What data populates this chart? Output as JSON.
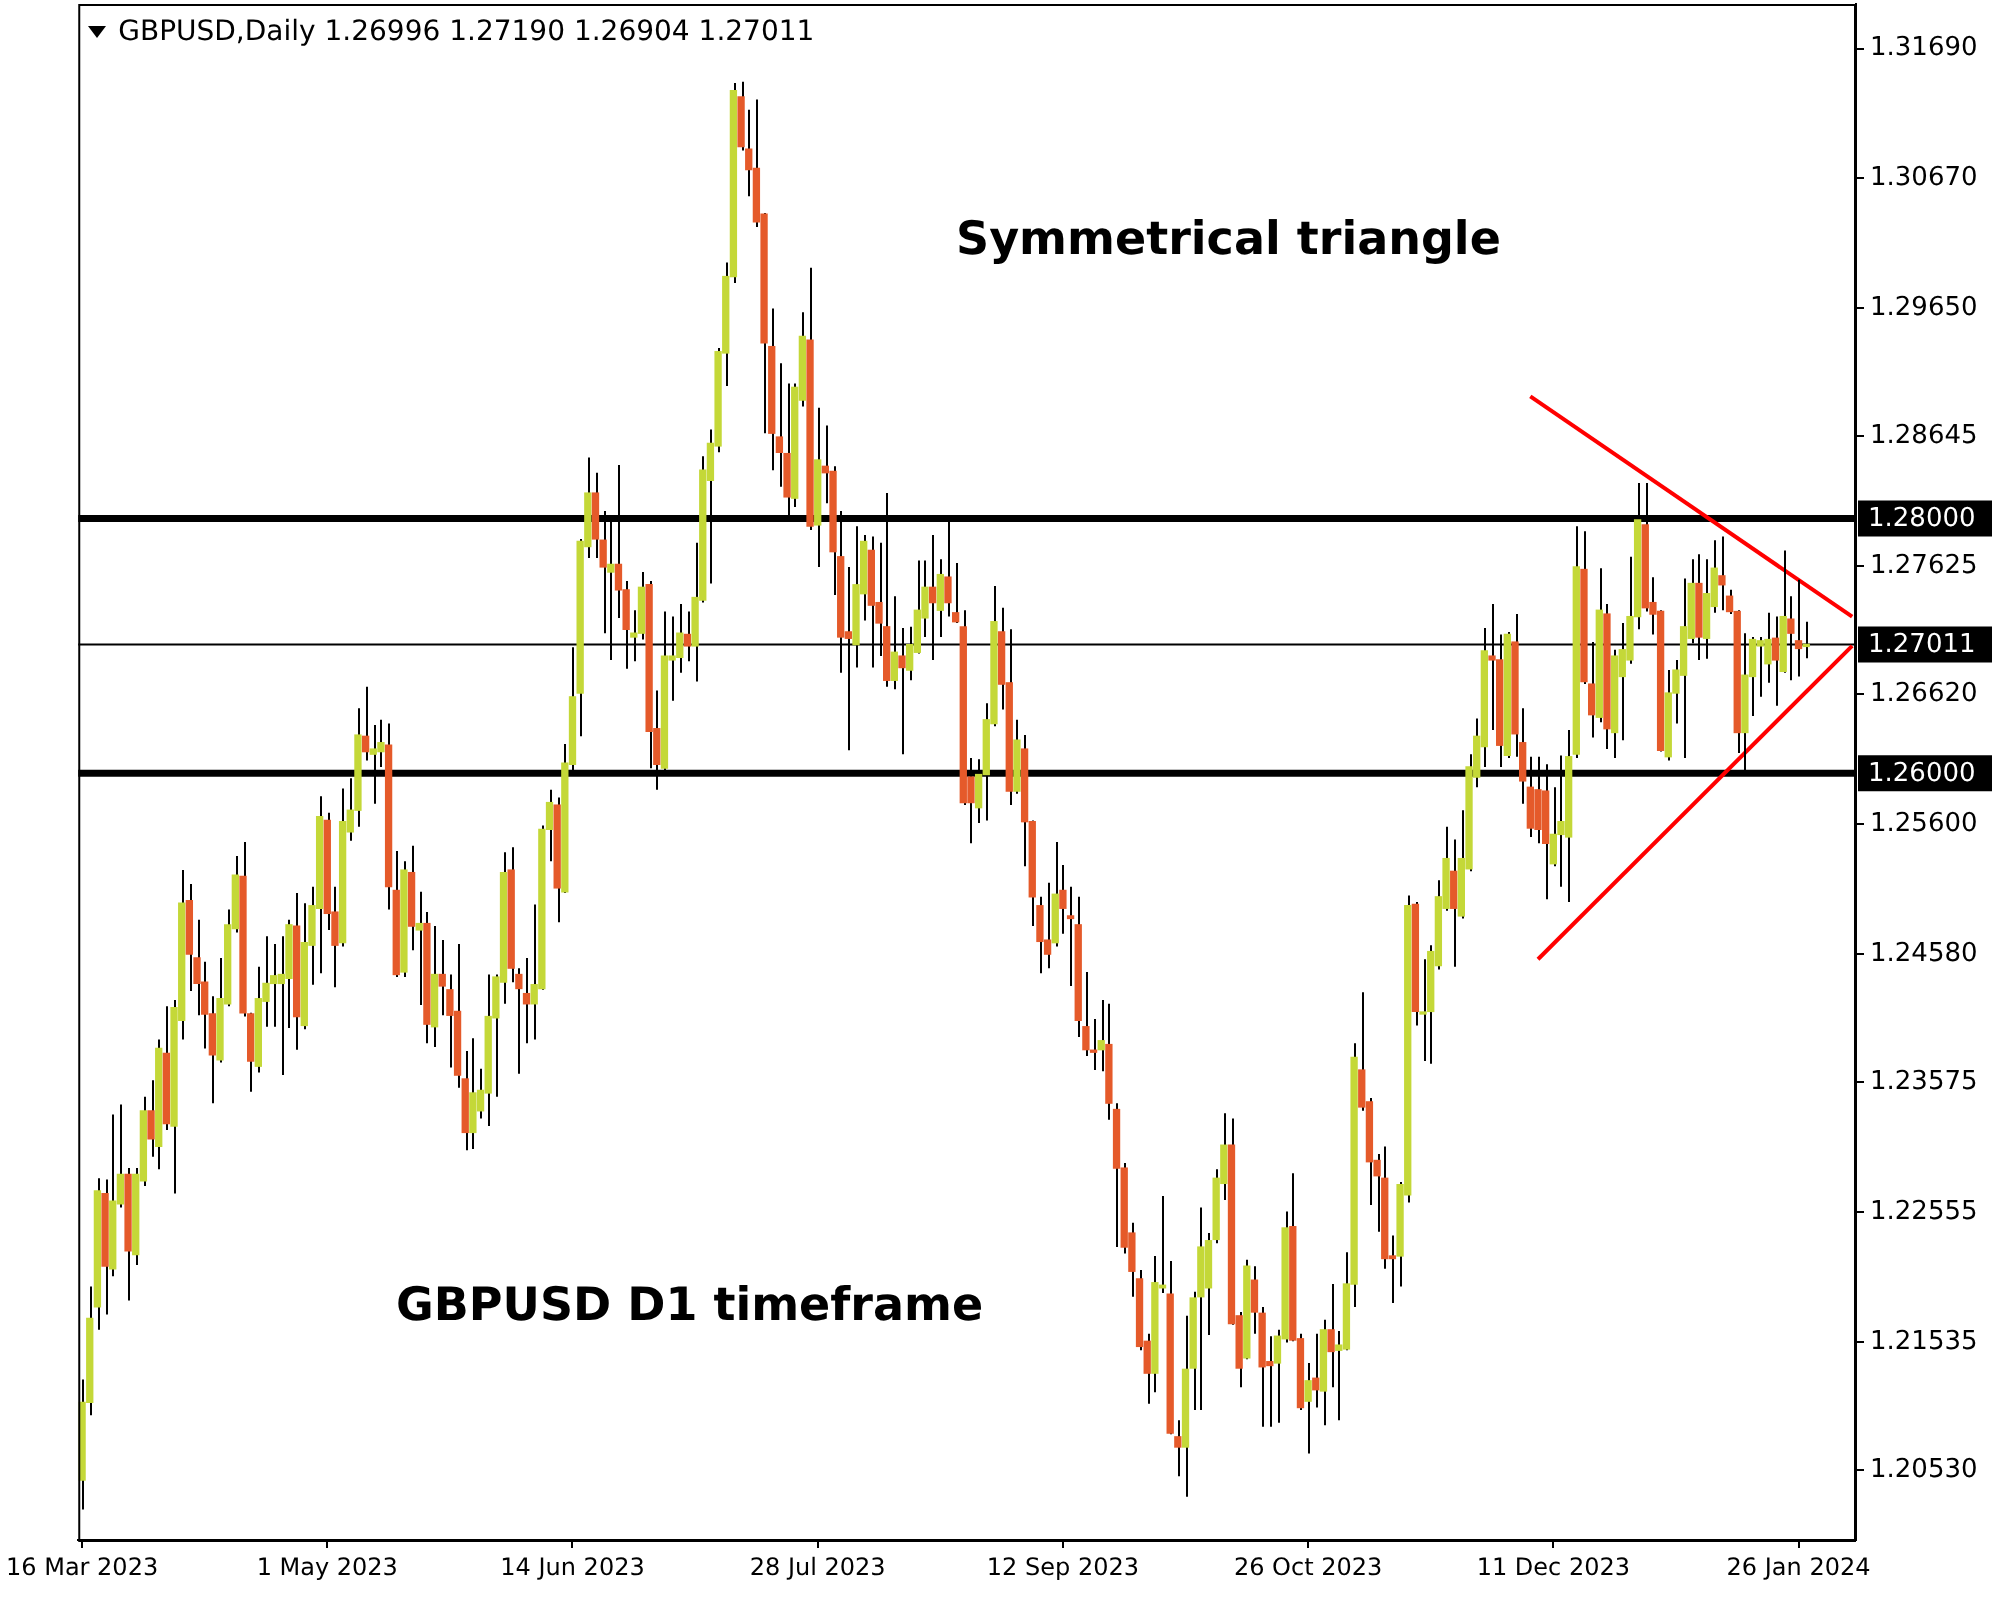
{
  "chart_data": {
    "type": "candlestick",
    "title": "GBPUSD,Daily 1.26996 1.27190 1.26904 1.27011",
    "annotations": [
      "Symmetrical triangle",
      "GBPUSD D1 timeframe"
    ],
    "categories": [
      "16 Mar 2023",
      null,
      null,
      null,
      null,
      null,
      null,
      null,
      null,
      null,
      null,
      null,
      null,
      null,
      null,
      null,
      null,
      null,
      null,
      null,
      null,
      null,
      null,
      null,
      null,
      null,
      null,
      null,
      null,
      null,
      null,
      null,
      "1 May 2023",
      null,
      null,
      null,
      null,
      null,
      null,
      null,
      null,
      null,
      null,
      null,
      null,
      null,
      null,
      null,
      null,
      null,
      null,
      null,
      null,
      null,
      null,
      null,
      null,
      null,
      null,
      null,
      null,
      null,
      null,
      null,
      "14 Jun 2023",
      null,
      null,
      null,
      null,
      null,
      null,
      null,
      null,
      null,
      null,
      null,
      null,
      null,
      null,
      null,
      null,
      null,
      null,
      null,
      null,
      null,
      null,
      null,
      null,
      null,
      null,
      null,
      null,
      null,
      null,
      null,
      "28 Jul 2023",
      null,
      null,
      null,
      null,
      null,
      null,
      null,
      null,
      null,
      null,
      null,
      null,
      null,
      null,
      null,
      null,
      null,
      null,
      null,
      null,
      null,
      null,
      null,
      null,
      null,
      null,
      null,
      null,
      null,
      null,
      null,
      "12 Sep 2023",
      null,
      null,
      null,
      null,
      null,
      null,
      null,
      null,
      null,
      null,
      null,
      null,
      null,
      null,
      null,
      null,
      null,
      null,
      null,
      null,
      null,
      null,
      null,
      null,
      null,
      null,
      null,
      null,
      null,
      null,
      null,
      "26 Oct 2023",
      null,
      null,
      null,
      null,
      null,
      null,
      null,
      null,
      null,
      null,
      null,
      null,
      null,
      null,
      null,
      null,
      null,
      null,
      null,
      null,
      null,
      null,
      null,
      null,
      null,
      null,
      null,
      null,
      null,
      null,
      null,
      "11 Dec 2023",
      null,
      null,
      null,
      null,
      null,
      null,
      null,
      null,
      null,
      null,
      null,
      null,
      null,
      null,
      null,
      null,
      null,
      null,
      null,
      null,
      null,
      null,
      null,
      null,
      null,
      null,
      null,
      null,
      null,
      null,
      null,
      "26 Jan 2024",
      null,
      null,
      null,
      null,
      null,
      null,
      null
    ],
    "ohlc": [
      [
        1.2045,
        1.2124,
        1.2022,
        1.2106
      ],
      [
        1.2106,
        1.2197,
        1.2096,
        1.2172
      ],
      [
        1.2181,
        1.2282,
        1.2163,
        1.2272
      ],
      [
        1.227,
        1.2281,
        1.2175,
        1.2213
      ],
      [
        1.2211,
        1.2332,
        1.2205,
        1.2264
      ],
      [
        1.2262,
        1.234,
        1.2259,
        1.2285
      ],
      [
        1.2285,
        1.229,
        1.2186,
        1.2225
      ],
      [
        1.2222,
        1.229,
        1.2214,
        1.2285
      ],
      [
        1.228,
        1.2346,
        1.2276,
        1.2335
      ],
      [
        1.2335,
        1.2359,
        1.2299,
        1.2313
      ],
      [
        1.2307,
        1.2391,
        1.2289,
        1.2384
      ],
      [
        1.238,
        1.2417,
        1.232,
        1.2325
      ],
      [
        1.2323,
        1.2422,
        1.227,
        1.2416
      ],
      [
        1.2406,
        1.2524,
        1.2391,
        1.2498
      ],
      [
        1.25,
        1.2513,
        1.2429,
        1.2458
      ],
      [
        1.2455,
        1.2485,
        1.241,
        1.2435
      ],
      [
        1.2436,
        1.2452,
        1.2384,
        1.2411
      ],
      [
        1.2411,
        1.2425,
        1.2341,
        1.2379
      ],
      [
        1.2375,
        1.2455,
        1.2373,
        1.2423
      ],
      [
        1.2419,
        1.2493,
        1.2417,
        1.2481
      ],
      [
        1.2478,
        1.2535,
        1.2475,
        1.252
      ],
      [
        1.2519,
        1.2546,
        1.2409,
        1.2412
      ],
      [
        1.2411,
        1.2412,
        1.235,
        1.2374
      ],
      [
        1.237,
        1.2448,
        1.2365,
        1.2423
      ],
      [
        1.2421,
        1.2472,
        1.2401,
        1.2435
      ],
      [
        1.2435,
        1.2466,
        1.2401,
        1.2441
      ],
      [
        1.2435,
        1.2472,
        1.2363,
        1.2442
      ],
      [
        1.2439,
        1.2485,
        1.24,
        1.2481
      ],
      [
        1.248,
        1.2506,
        1.2383,
        1.2409
      ],
      [
        1.2402,
        1.2498,
        1.2399,
        1.2467
      ],
      [
        1.2465,
        1.2511,
        1.2434,
        1.2496
      ],
      [
        1.2494,
        1.2582,
        1.2443,
        1.2566
      ],
      [
        1.2563,
        1.2569,
        1.2477,
        1.249
      ],
      [
        1.2491,
        1.2511,
        1.2432,
        1.2465
      ],
      [
        1.2467,
        1.2588,
        1.2464,
        1.2562
      ],
      [
        1.2554,
        1.2596,
        1.2547,
        1.2571
      ],
      [
        1.2571,
        1.2651,
        1.2558,
        1.263
      ],
      [
        1.2629,
        1.2668,
        1.261,
        1.2617
      ],
      [
        1.2615,
        1.2638,
        1.2576,
        1.2619
      ],
      [
        1.2617,
        1.2642,
        1.2605,
        1.2624
      ],
      [
        1.2622,
        1.2639,
        1.2493,
        1.2511
      ],
      [
        1.2508,
        1.2539,
        1.244,
        1.2442
      ],
      [
        1.2444,
        1.2531,
        1.244,
        1.2524
      ],
      [
        1.2522,
        1.2543,
        1.2461,
        1.248
      ],
      [
        1.2477,
        1.2507,
        1.2418,
        1.2482
      ],
      [
        1.2482,
        1.2491,
        1.2388,
        1.2403
      ],
      [
        1.2401,
        1.248,
        1.2385,
        1.2442
      ],
      [
        1.2442,
        1.2469,
        1.241,
        1.2433
      ],
      [
        1.243,
        1.2442,
        1.2369,
        1.241
      ],
      [
        1.2413,
        1.2466,
        1.2353,
        1.2363
      ],
      [
        1.236,
        1.2382,
        1.2304,
        1.2318
      ],
      [
        1.2318,
        1.2392,
        1.2305,
        1.2349
      ],
      [
        1.2335,
        1.2368,
        1.2329,
        1.2351
      ],
      [
        1.2349,
        1.2442,
        1.2323,
        1.2409
      ],
      [
        1.2408,
        1.2442,
        1.2346,
        1.244
      ],
      [
        1.2436,
        1.2538,
        1.2419,
        1.2522
      ],
      [
        1.2524,
        1.2542,
        1.2436,
        1.2447
      ],
      [
        1.2442,
        1.2447,
        1.2364,
        1.2431
      ],
      [
        1.2427,
        1.2455,
        1.2388,
        1.2419
      ],
      [
        1.2419,
        1.2497,
        1.2391,
        1.2434
      ],
      [
        1.2431,
        1.2559,
        1.243,
        1.2556
      ],
      [
        1.2556,
        1.2587,
        1.2531,
        1.2577
      ],
      [
        1.2575,
        1.2581,
        1.2483,
        1.251
      ],
      [
        1.2507,
        1.2623,
        1.2506,
        1.2608
      ],
      [
        1.2607,
        1.2699,
        1.2601,
        1.266
      ],
      [
        1.2663,
        1.2784,
        1.2629,
        1.2782
      ],
      [
        1.2778,
        1.2848,
        1.2769,
        1.282
      ],
      [
        1.282,
        1.2836,
        1.2769,
        1.2784
      ],
      [
        1.2783,
        1.2806,
        1.271,
        1.2762
      ],
      [
        1.2758,
        1.28,
        1.2689,
        1.2764
      ],
      [
        1.2764,
        1.2842,
        1.2722,
        1.2744
      ],
      [
        1.2744,
        1.2751,
        1.2682,
        1.2713
      ],
      [
        1.2707,
        1.2728,
        1.2688,
        1.271
      ],
      [
        1.271,
        1.2758,
        1.2705,
        1.2746
      ],
      [
        1.2748,
        1.2751,
        1.2604,
        1.2633
      ],
      [
        1.2635,
        1.2665,
        1.2587,
        1.2607
      ],
      [
        1.2604,
        1.2727,
        1.2601,
        1.2692
      ],
      [
        1.2689,
        1.2723,
        1.2657,
        1.2692
      ],
      [
        1.2691,
        1.2733,
        1.2679,
        1.271
      ],
      [
        1.2709,
        1.2727,
        1.2688,
        1.27
      ],
      [
        1.27,
        1.2781,
        1.2672,
        1.2738
      ],
      [
        1.2736,
        1.2849,
        1.2734,
        1.2838
      ],
      [
        1.283,
        1.287,
        1.2749,
        1.2859
      ],
      [
        1.2857,
        1.2934,
        1.2852,
        1.2931
      ],
      [
        1.293,
        1.3001,
        1.2904,
        1.299
      ],
      [
        1.299,
        1.3142,
        1.2985,
        1.3136
      ],
      [
        1.3131,
        1.3143,
        1.3089,
        1.3092
      ],
      [
        1.309,
        1.3121,
        1.3053,
        1.3074
      ],
      [
        1.3075,
        1.3129,
        1.3029,
        1.3033
      ],
      [
        1.3039,
        1.304,
        1.2867,
        1.2938
      ],
      [
        1.2935,
        1.2965,
        1.2838,
        1.2867
      ],
      [
        1.2864,
        1.2922,
        1.2825,
        1.2852
      ],
      [
        1.2851,
        1.2906,
        1.2799,
        1.2817
      ],
      [
        1.2816,
        1.2906,
        1.2809,
        1.2903
      ],
      [
        1.2893,
        1.2962,
        1.2888,
        1.2943
      ],
      [
        1.294,
        1.2997,
        1.2791,
        1.2794
      ],
      [
        1.2795,
        1.2887,
        1.2762,
        1.2846
      ],
      [
        1.2841,
        1.2873,
        1.2812,
        1.2836
      ],
      [
        1.2837,
        1.2841,
        1.274,
        1.2774
      ],
      [
        1.277,
        1.2806,
        1.2679,
        1.2707
      ],
      [
        1.2711,
        1.2762,
        1.2618,
        1.2706
      ],
      [
        1.2701,
        1.2794,
        1.2683,
        1.2748
      ],
      [
        1.2741,
        1.2787,
        1.272,
        1.2782
      ],
      [
        1.2775,
        1.2786,
        1.2683,
        1.2732
      ],
      [
        1.2734,
        1.2781,
        1.2692,
        1.2718
      ],
      [
        1.2715,
        1.282,
        1.2668,
        1.2673
      ],
      [
        1.2673,
        1.2739,
        1.2666,
        1.2695
      ],
      [
        1.2692,
        1.2714,
        1.2615,
        1.2683
      ],
      [
        1.2681,
        1.2715,
        1.2673,
        1.2701
      ],
      [
        1.2695,
        1.2767,
        1.2694,
        1.2728
      ],
      [
        1.2722,
        1.2767,
        1.2707,
        1.2746
      ],
      [
        1.2746,
        1.2787,
        1.2689,
        1.2734
      ],
      [
        1.2728,
        1.2768,
        1.2707,
        1.2756
      ],
      [
        1.2754,
        1.2799,
        1.2723,
        1.2734
      ],
      [
        1.2726,
        1.2765,
        1.2718,
        1.2719
      ],
      [
        1.2715,
        1.2728,
        1.2575,
        1.2577
      ],
      [
        1.2597,
        1.2612,
        1.2545,
        1.2577
      ],
      [
        1.2573,
        1.2611,
        1.2561,
        1.2599
      ],
      [
        1.2599,
        1.2655,
        1.2563,
        1.2642
      ],
      [
        1.2639,
        1.2747,
        1.2637,
        1.2719
      ],
      [
        1.2711,
        1.273,
        1.265,
        1.267
      ],
      [
        1.2671,
        1.2713,
        1.2575,
        1.2586
      ],
      [
        1.2586,
        1.2642,
        1.2584,
        1.2626
      ],
      [
        1.2619,
        1.263,
        1.2527,
        1.2562
      ],
      [
        1.2562,
        1.2563,
        1.248,
        1.2503
      ],
      [
        1.2496,
        1.2503,
        1.2443,
        1.2468
      ],
      [
        1.2469,
        1.2514,
        1.2447,
        1.2458
      ],
      [
        1.2467,
        1.2546,
        1.2464,
        1.2505
      ],
      [
        1.2508,
        1.2528,
        1.2474,
        1.2494
      ],
      [
        1.2488,
        1.2511,
        1.2433,
        1.2486
      ],
      [
        1.2481,
        1.2503,
        1.2393,
        1.2406
      ],
      [
        1.2401,
        1.2444,
        1.2378,
        1.2383
      ],
      [
        1.2382,
        1.2407,
        1.2367,
        1.2381
      ],
      [
        1.2383,
        1.2422,
        1.2366,
        1.239
      ],
      [
        1.2387,
        1.2419,
        1.2328,
        1.2341
      ],
      [
        1.2336,
        1.2341,
        1.2228,
        1.229
      ],
      [
        1.229,
        1.2294,
        1.2223,
        1.2228
      ],
      [
        1.2239,
        1.2247,
        1.2189,
        1.2209
      ],
      [
        1.2203,
        1.221,
        1.2147,
        1.215
      ],
      [
        1.2154,
        1.216,
        1.2105,
        1.2129
      ],
      [
        1.2129,
        1.2221,
        1.2114,
        1.22
      ],
      [
        1.2196,
        1.2268,
        1.2192,
        1.2198
      ],
      [
        1.2191,
        1.2217,
        1.2081,
        1.2082
      ],
      [
        1.2079,
        1.2092,
        1.2048,
        1.2071
      ],
      [
        1.2071,
        1.2174,
        1.2032,
        1.2132
      ],
      [
        1.2133,
        1.2193,
        1.21,
        1.2188
      ],
      [
        1.2189,
        1.2259,
        1.21,
        1.2228
      ],
      [
        1.2196,
        1.2239,
        1.2159,
        1.2233
      ],
      [
        1.2234,
        1.2289,
        1.2231,
        1.2282
      ],
      [
        1.2278,
        1.2333,
        1.2265,
        1.2308
      ],
      [
        1.2308,
        1.2329,
        1.2167,
        1.2168
      ],
      [
        1.2174,
        1.2177,
        1.2118,
        1.2133
      ],
      [
        1.2141,
        1.2218,
        1.214,
        1.2213
      ],
      [
        1.2202,
        1.2213,
        1.216,
        1.2177
      ],
      [
        1.2176,
        1.2181,
        1.2087,
        1.2134
      ],
      [
        1.2138,
        1.2158,
        1.2087,
        1.2135
      ],
      [
        1.2137,
        1.2163,
        1.209,
        1.2158
      ],
      [
        1.2156,
        1.2256,
        1.2153,
        1.2243
      ],
      [
        1.2244,
        1.2286,
        1.2154,
        1.2155
      ],
      [
        1.2156,
        1.216,
        1.21,
        1.2102
      ],
      [
        1.2107,
        1.2137,
        1.2066,
        1.2123
      ],
      [
        1.2125,
        1.216,
        1.2102,
        1.2116
      ],
      [
        1.2115,
        1.2171,
        1.2088,
        1.2163
      ],
      [
        1.2163,
        1.2199,
        1.2118,
        1.2146
      ],
      [
        1.2147,
        1.2162,
        1.2092,
        1.2151
      ],
      [
        1.2148,
        1.2224,
        1.2147,
        1.2199
      ],
      [
        1.2199,
        1.2388,
        1.2181,
        1.2377
      ],
      [
        1.2367,
        1.2428,
        1.2335,
        1.2338
      ],
      [
        1.2342,
        1.2345,
        1.2261,
        1.2295
      ],
      [
        1.2296,
        1.2301,
        1.224,
        1.2284
      ],
      [
        1.2282,
        1.2307,
        1.2211,
        1.2219
      ],
      [
        1.2221,
        1.2237,
        1.2184,
        1.2219
      ],
      [
        1.2221,
        1.2279,
        1.2197,
        1.2277
      ],
      [
        1.2269,
        1.2504,
        1.2263,
        1.2496
      ],
      [
        1.2497,
        1.2499,
        1.2402,
        1.2413
      ],
      [
        1.2411,
        1.2454,
        1.2374,
        1.2412
      ],
      [
        1.2413,
        1.2465,
        1.2372,
        1.246
      ],
      [
        1.2449,
        1.2516,
        1.2446,
        1.2503
      ],
      [
        1.2494,
        1.2558,
        1.2492,
        1.2533
      ],
      [
        1.2523,
        1.2548,
        1.2448,
        1.2494
      ],
      [
        1.2488,
        1.2571,
        1.2486,
        1.2533
      ],
      [
        1.2525,
        1.2615,
        1.2523,
        1.2605
      ],
      [
        1.2597,
        1.2643,
        1.2589,
        1.2629
      ],
      [
        1.2621,
        1.2714,
        1.2605,
        1.2696
      ],
      [
        1.2692,
        1.2733,
        1.2634,
        1.2689
      ],
      [
        1.2689,
        1.2709,
        1.2605,
        1.2622
      ],
      [
        1.2614,
        1.2711,
        1.2612,
        1.2709
      ],
      [
        1.2703,
        1.2725,
        1.2613,
        1.2631
      ],
      [
        1.2624,
        1.2651,
        1.2576,
        1.2594
      ],
      [
        1.2589,
        1.2613,
        1.255,
        1.2557
      ],
      [
        1.2587,
        1.2613,
        1.2545,
        1.2556
      ],
      [
        1.2586,
        1.2607,
        1.2501,
        1.2545
      ],
      [
        1.2529,
        1.2589,
        1.2527,
        1.2552
      ],
      [
        1.2552,
        1.2614,
        1.2511,
        1.2562
      ],
      [
        1.255,
        1.2634,
        1.2499,
        1.2613
      ],
      [
        1.2615,
        1.2794,
        1.2612,
        1.2762
      ],
      [
        1.276,
        1.279,
        1.267,
        1.2672
      ],
      [
        1.267,
        1.2703,
        1.2628,
        1.2646
      ],
      [
        1.2644,
        1.2761,
        1.264,
        1.2728
      ],
      [
        1.2725,
        1.2733,
        1.2619,
        1.2635
      ],
      [
        1.2632,
        1.2697,
        1.2612,
        1.2692
      ],
      [
        1.2676,
        1.2718,
        1.2626,
        1.2697
      ],
      [
        1.2689,
        1.277,
        1.2686,
        1.2723
      ],
      [
        1.2723,
        1.2828,
        1.2713,
        1.2799
      ],
      [
        1.2795,
        1.2828,
        1.2727,
        1.273
      ],
      [
        1.2734,
        1.2754,
        1.2709,
        1.2725
      ],
      [
        1.2727,
        1.2728,
        1.2617,
        1.2618
      ],
      [
        1.2613,
        1.2681,
        1.261,
        1.2663
      ],
      [
        1.2663,
        1.2689,
        1.2639,
        1.2681
      ],
      [
        1.2677,
        1.2753,
        1.2612,
        1.2715
      ],
      [
        1.2706,
        1.2768,
        1.2702,
        1.2749
      ],
      [
        1.2749,
        1.2772,
        1.2689,
        1.2707
      ],
      [
        1.2706,
        1.2768,
        1.269,
        1.2741
      ],
      [
        1.2731,
        1.2783,
        1.2726,
        1.2761
      ],
      [
        1.2755,
        1.2786,
        1.2728,
        1.2748
      ],
      [
        1.2739,
        1.2744,
        1.2725,
        1.2727
      ],
      [
        1.2727,
        1.2728,
        1.2616,
        1.2632
      ],
      [
        1.2632,
        1.271,
        1.26,
        1.2677
      ],
      [
        1.2676,
        1.2707,
        1.2645,
        1.2705
      ],
      [
        1.27,
        1.2707,
        1.266,
        1.2704
      ],
      [
        1.2686,
        1.2726,
        1.2671,
        1.2705
      ],
      [
        1.2706,
        1.2723,
        1.2653,
        1.2689
      ],
      [
        1.268,
        1.2775,
        1.2679,
        1.2723
      ],
      [
        1.2721,
        1.2739,
        1.2673,
        1.271
      ],
      [
        1.2704,
        1.2752,
        1.2676,
        1.2698
      ],
      [
        1.26996,
        1.2719,
        1.26904,
        1.27011
      ],
      null,
      null,
      null,
      null,
      null,
      null
    ],
    "colors": [
      "#c4d838",
      "#c4d838",
      "#c4d838",
      "#e55a2a",
      "#c4d838",
      "#c4d838",
      "#e55a2a",
      "#c4d838",
      "#c4d838",
      "#e55a2a",
      "#c4d838",
      "#e55a2a",
      "#c4d838",
      "#c4d838",
      "#e55a2a",
      "#e55a2a",
      "#e55a2a",
      "#e55a2a",
      "#c4d838",
      "#c4d838",
      "#c4d838",
      "#e55a2a",
      "#e55a2a",
      "#c4d838",
      "#c4d838",
      "#c4d838",
      "#c4d838",
      "#c4d838",
      "#e55a2a",
      "#c4d838",
      "#c4d838",
      "#c4d838",
      "#e55a2a",
      "#e55a2a",
      "#c4d838",
      "#c4d838",
      "#c4d838",
      "#e55a2a",
      "#c4d838",
      "#c4d838",
      "#e55a2a",
      "#e55a2a",
      "#c4d838",
      "#e55a2a",
      "#c4d838",
      "#e55a2a",
      "#c4d838",
      "#e55a2a",
      "#e55a2a",
      "#e55a2a",
      "#e55a2a",
      "#c4d838",
      "#c4d838",
      "#c4d838",
      "#c4d838",
      "#c4d838",
      "#e55a2a",
      "#e55a2a",
      "#e55a2a",
      "#c4d838",
      "#c4d838",
      "#c4d838",
      "#e55a2a",
      "#c4d838",
      "#c4d838",
      "#c4d838",
      "#c4d838",
      "#e55a2a",
      "#e55a2a",
      "#c4d838",
      "#e55a2a",
      "#e55a2a",
      "#c4d838",
      "#c4d838",
      "#e55a2a",
      "#e55a2a",
      "#c4d838",
      "#c4d838",
      "#c4d838",
      "#e55a2a",
      "#c4d838",
      "#c4d838",
      "#c4d838",
      "#c4d838",
      "#c4d838",
      "#c4d838",
      "#e55a2a",
      "#e55a2a",
      "#e55a2a",
      "#e55a2a",
      "#e55a2a",
      "#e55a2a",
      "#e55a2a",
      "#c4d838",
      "#c4d838",
      "#e55a2a",
      "#c4d838",
      "#e55a2a",
      "#e55a2a",
      "#e55a2a",
      "#e55a2a",
      "#c4d838",
      "#c4d838",
      "#e55a2a",
      "#e55a2a",
      "#e55a2a",
      "#c4d838",
      "#e55a2a",
      "#c4d838",
      "#c4d838",
      "#c4d838",
      "#e55a2a",
      "#c4d838",
      "#e55a2a",
      "#e55a2a",
      "#e55a2a",
      "#e55a2a",
      "#c4d838",
      "#c4d838",
      "#c4d838",
      "#e55a2a",
      "#e55a2a",
      "#c4d838",
      "#e55a2a",
      "#e55a2a",
      "#e55a2a",
      "#e55a2a",
      "#c4d838",
      "#e55a2a",
      "#e55a2a",
      "#e55a2a",
      "#e55a2a",
      "#e55a2a",
      "#c4d838",
      "#e55a2a",
      "#e55a2a",
      "#e55a2a",
      "#e55a2a",
      "#e55a2a",
      "#e55a2a",
      "#c4d838",
      "#c4d838",
      "#e55a2a",
      "#e55a2a",
      "#c4d838",
      "#c4d838",
      "#c4d838",
      "#c4d838",
      "#c4d838",
      "#c4d838",
      "#e55a2a",
      "#e55a2a",
      "#c4d838",
      "#e55a2a",
      "#e55a2a",
      "#e55a2a",
      "#c4d838",
      "#c4d838",
      "#e55a2a",
      "#e55a2a",
      "#c4d838",
      "#e55a2a",
      "#c4d838",
      "#e55a2a",
      "#c4d838",
      "#c4d838",
      "#c4d838",
      "#e55a2a",
      "#e55a2a",
      "#e55a2a",
      "#e55a2a",
      "#e55a2a",
      "#c4d838",
      "#c4d838",
      "#e55a2a",
      "#c4d838",
      "#c4d838",
      "#c4d838",
      "#c4d838",
      "#e55a2a",
      "#c4d838",
      "#c4d838",
      "#c4d838",
      "#c4d838",
      "#e55a2a",
      "#e55a2a",
      "#c4d838",
      "#e55a2a",
      "#e55a2a",
      "#e55a2a",
      "#e55a2a",
      "#e55a2a",
      "#c4d838",
      "#c4d838",
      "#c4d838",
      "#c4d838",
      "#e55a2a",
      "#e55a2a",
      "#c4d838",
      "#e55a2a",
      "#c4d838",
      "#c4d838",
      "#c4d838",
      "#c4d838",
      "#e55a2a",
      "#e55a2a",
      "#e55a2a",
      "#c4d838",
      "#c4d838",
      "#c4d838",
      "#c4d838",
      "#e55a2a",
      "#c4d838",
      "#c4d838",
      "#e55a2a",
      "#e55a2a",
      "#e55a2a",
      "#c4d838",
      "#c4d838",
      "#c4d838",
      "#c4d838",
      "#e55a2a",
      "#c4d838",
      "#e55a2a",
      "#e55a2a",
      "#c4d838",
      null,
      null,
      null,
      null,
      null,
      null
    ],
    "series": [
      {
        "type": "line",
        "color": "#ff0000",
        "values": [
          null,
          null,
          null,
          null,
          null,
          null,
          null,
          null,
          null,
          null,
          null,
          null,
          null,
          null,
          null,
          null,
          null,
          null,
          null,
          null,
          null,
          null,
          null,
          null,
          null,
          null,
          null,
          null,
          null,
          null,
          null,
          null,
          null,
          null,
          null,
          null,
          null,
          null,
          null,
          null,
          null,
          null,
          null,
          null,
          null,
          null,
          null,
          null,
          null,
          null,
          null,
          null,
          null,
          null,
          null,
          null,
          null,
          null,
          null,
          null,
          null,
          null,
          null,
          null,
          null,
          null,
          null,
          null,
          null,
          null,
          null,
          null,
          null,
          null,
          null,
          null,
          null,
          null,
          null,
          null,
          null,
          null,
          null,
          null,
          null,
          null,
          null,
          null,
          null,
          null,
          null,
          null,
          null,
          null,
          null,
          null,
          null,
          null,
          null,
          null,
          null,
          null,
          null,
          null,
          null,
          null,
          null,
          null,
          null,
          null,
          null,
          null,
          null,
          null,
          null,
          null,
          null,
          null,
          null,
          null,
          null,
          null,
          null,
          null,
          null,
          null,
          null,
          null,
          null,
          null,
          null,
          null,
          null,
          null,
          null,
          null,
          null,
          null,
          null,
          null,
          null,
          null,
          null,
          null,
          null,
          null,
          null,
          null,
          null,
          null,
          null,
          null,
          null,
          null,
          null,
          null,
          null,
          null,
          null,
          null,
          null,
          null,
          null,
          null,
          null,
          null,
          null,
          null,
          null,
          null,
          null,
          null,
          null,
          null,
          null,
          null,
          null,
          null,
          null,
          null,
          null,
          null,
          null,
          null,
          null,
          null,
          null,
          null,
          null,
          1.2896,
          null,
          null,
          null,
          null,
          null,
          null,
          null,
          null,
          null,
          null,
          null,
          null,
          null,
          null,
          null,
          null,
          null,
          null,
          null,
          null,
          null,
          null,
          null,
          null,
          null,
          null,
          null,
          null,
          null,
          null,
          null,
          null,
          null,
          null,
          null,
          null,
          null,
          null,
          null,
          null,
          null,
          1.2723
        ]
      },
      {
        "type": "line",
        "color": "#ff0000",
        "values": [
          null,
          null,
          null,
          null,
          null,
          null,
          null,
          null,
          null,
          null,
          null,
          null,
          null,
          null,
          null,
          null,
          null,
          null,
          null,
          null,
          null,
          null,
          null,
          null,
          null,
          null,
          null,
          null,
          null,
          null,
          null,
          null,
          null,
          null,
          null,
          null,
          null,
          null,
          null,
          null,
          null,
          null,
          null,
          null,
          null,
          null,
          null,
          null,
          null,
          null,
          null,
          null,
          null,
          null,
          null,
          null,
          null,
          null,
          null,
          null,
          null,
          null,
          null,
          null,
          null,
          null,
          null,
          null,
          null,
          null,
          null,
          null,
          null,
          null,
          null,
          null,
          null,
          null,
          null,
          null,
          null,
          null,
          null,
          null,
          null,
          null,
          null,
          null,
          null,
          null,
          null,
          null,
          null,
          null,
          null,
          null,
          null,
          null,
          null,
          null,
          null,
          null,
          null,
          null,
          null,
          null,
          null,
          null,
          null,
          null,
          null,
          null,
          null,
          null,
          null,
          null,
          null,
          null,
          null,
          null,
          null,
          null,
          null,
          null,
          null,
          null,
          null,
          null,
          null,
          null,
          null,
          null,
          null,
          null,
          null,
          null,
          null,
          null,
          null,
          null,
          null,
          null,
          null,
          null,
          null,
          null,
          null,
          null,
          null,
          null,
          null,
          null,
          null,
          null,
          null,
          null,
          null,
          null,
          null,
          null,
          null,
          null,
          null,
          null,
          null,
          null,
          null,
          null,
          null,
          null,
          null,
          null,
          null,
          null,
          null,
          null,
          null,
          null,
          null,
          null,
          null,
          null,
          null,
          null,
          null,
          null,
          null,
          null,
          null,
          null,
          1.2454,
          null,
          null,
          null,
          null,
          null,
          null,
          null,
          null,
          null,
          null,
          null,
          null,
          null,
          null,
          null,
          null,
          null,
          null,
          null,
          null,
          null,
          null,
          null,
          null,
          null,
          null,
          null,
          null,
          null,
          null,
          null,
          null,
          null,
          null,
          null,
          null,
          null,
          null,
          null,
          null,
          1.27
        ]
      }
    ],
    "ylim": [
      1.1998,
      1.3204
    ],
    "yticks": [
      {
        "value": 1.2053,
        "label": "1.20530"
      },
      {
        "value": 1.21535,
        "label": "1.21535"
      },
      {
        "value": 1.22555,
        "label": "1.22555"
      },
      {
        "value": 1.23575,
        "label": "1.23575"
      },
      {
        "value": 1.2458,
        "label": "1.24580"
      },
      {
        "value": 1.256,
        "label": "1.25600"
      },
      {
        "value": 1.2662,
        "label": "1.26620"
      },
      {
        "value": 1.27625,
        "label": "1.27625"
      },
      {
        "value": 1.28645,
        "label": "1.28645"
      },
      {
        "value": 1.2965,
        "label": "1.29650"
      },
      {
        "value": 1.3067,
        "label": "1.30670"
      },
      {
        "value": 1.3169,
        "label": "1.31690"
      }
    ],
    "ref_lines": [
      {
        "axis": "y",
        "value": 1.28,
        "label": "1.28000",
        "color": "#000000"
      },
      {
        "axis": "y",
        "value": 1.27011,
        "label": "1.27011",
        "color": "#000000"
      },
      {
        "axis": "y",
        "value": 1.26,
        "label": "1.26000",
        "color": "#000000"
      }
    ]
  }
}
